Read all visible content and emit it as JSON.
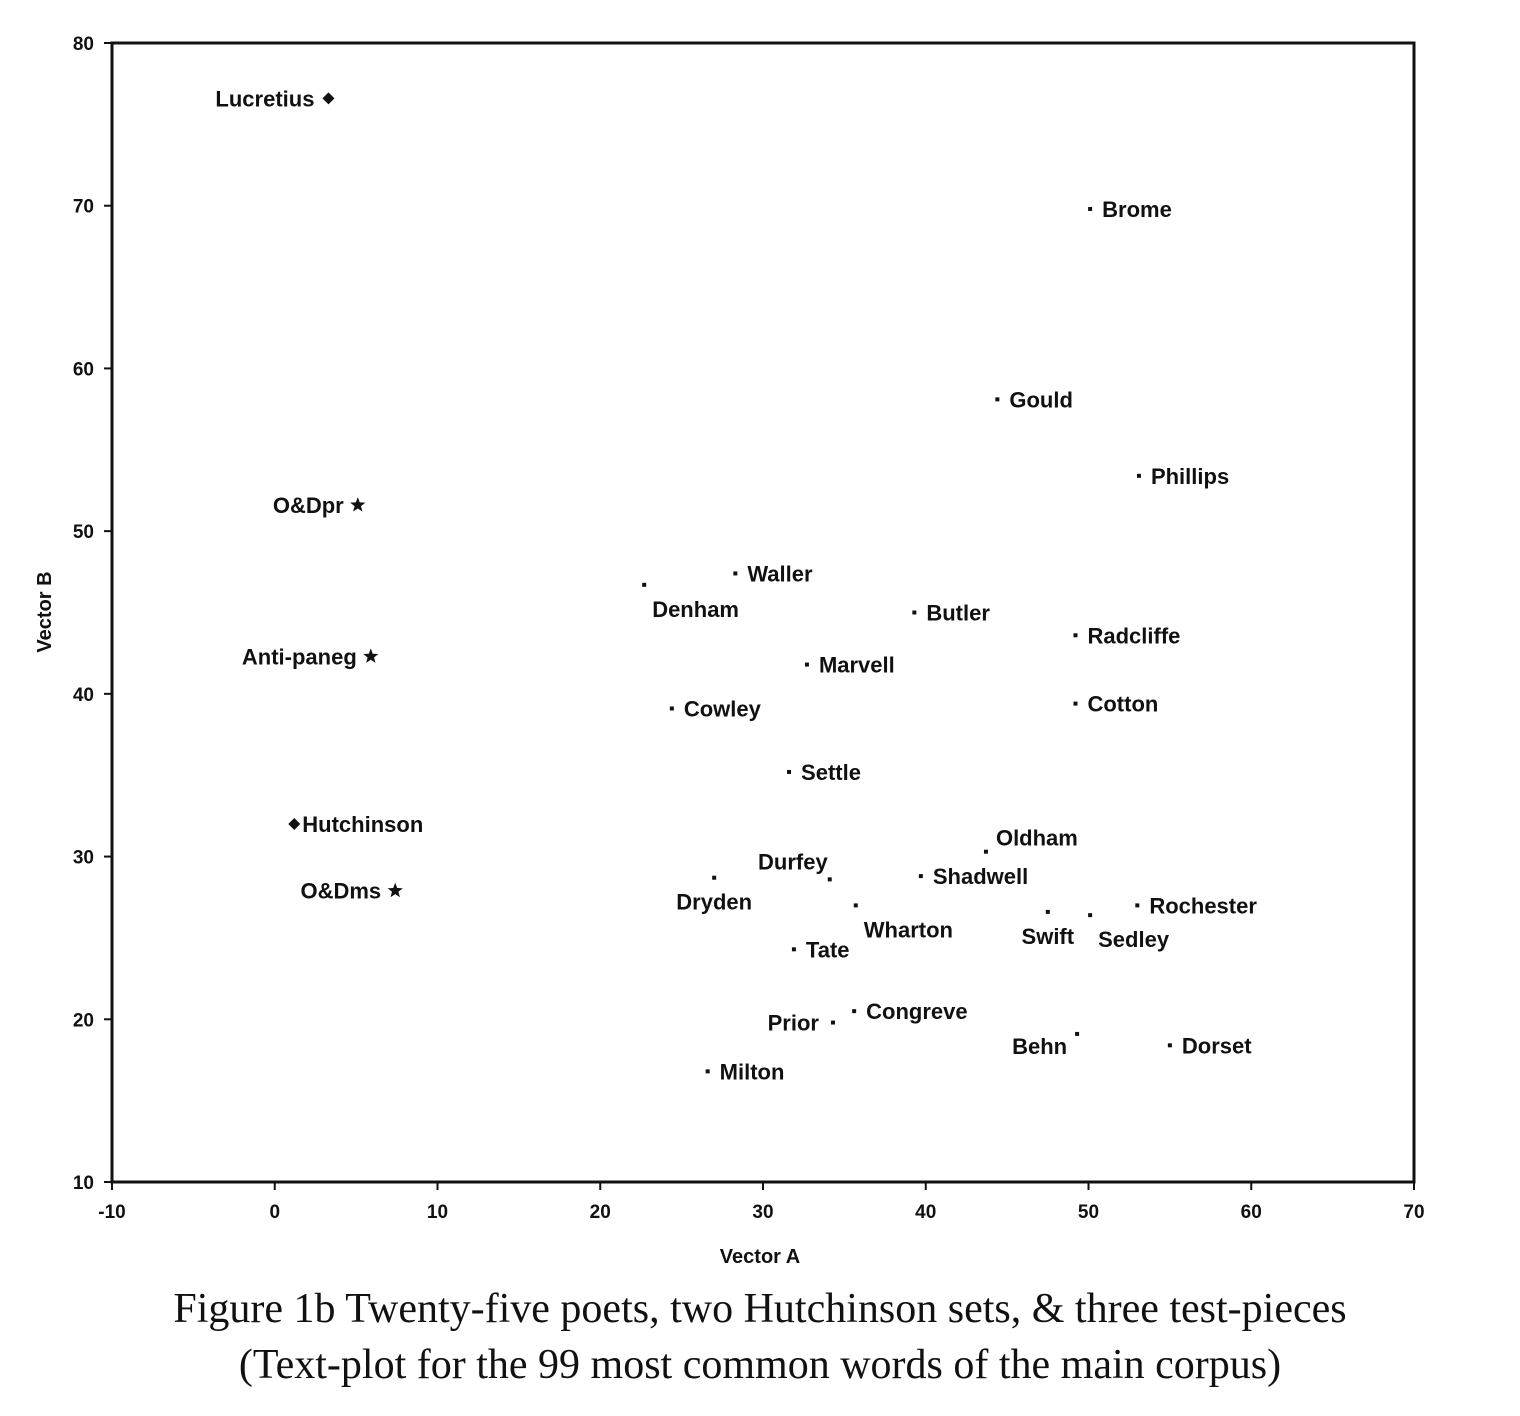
{
  "caption": {
    "line1": "Figure 1b Twenty-five poets, two Hutchinson sets, & three test-pieces",
    "line2": "(Text-plot for the 99 most common words of the main corpus)"
  },
  "chart_data": {
    "type": "scatter",
    "xlabel": "Vector A",
    "ylabel": "Vector B",
    "xlim": [
      -10,
      70
    ],
    "ylim": [
      10,
      80
    ],
    "xticks": [
      -10,
      0,
      10,
      20,
      30,
      40,
      50,
      60,
      70
    ],
    "yticks": [
      10,
      20,
      30,
      40,
      50,
      60,
      70,
      80
    ],
    "grid": false,
    "points": [
      {
        "label": "Lucretius",
        "x": 3.3,
        "y": 76.6,
        "marker": "diamond",
        "label_pos": "left",
        "label_weight": "bold"
      },
      {
        "label": "O&Dpr",
        "x": 5.1,
        "y": 51.6,
        "marker": "star",
        "label_pos": "left",
        "label_weight": "bold"
      },
      {
        "label": "Anti-paneg",
        "x": 5.9,
        "y": 42.3,
        "marker": "star",
        "label_pos": "left",
        "label_weight": "bold"
      },
      {
        "label": "Hutchinson",
        "x": 1.2,
        "y": 32.0,
        "marker": "diamond",
        "label_pos": "right",
        "label_weight": "bold"
      },
      {
        "label": "O&Dms",
        "x": 7.4,
        "y": 27.9,
        "marker": "star",
        "label_pos": "left",
        "label_weight": "bold"
      },
      {
        "label": "Brome",
        "x": 50.1,
        "y": 69.8,
        "marker": "dot",
        "label_pos": "right"
      },
      {
        "label": "Gould",
        "x": 44.4,
        "y": 58.1,
        "marker": "dot",
        "label_pos": "right"
      },
      {
        "label": "Phillips",
        "x": 53.1,
        "y": 53.4,
        "marker": "dot",
        "label_pos": "right"
      },
      {
        "label": "Waller",
        "x": 28.3,
        "y": 47.4,
        "marker": "dot",
        "label_pos": "right"
      },
      {
        "label": "Denham",
        "x": 22.7,
        "y": 46.7,
        "marker": "dot",
        "label_pos": "below-right"
      },
      {
        "label": "Butler",
        "x": 39.3,
        "y": 45.0,
        "marker": "dot",
        "label_pos": "right"
      },
      {
        "label": "Radcliffe",
        "x": 49.2,
        "y": 43.6,
        "marker": "dot",
        "label_pos": "right"
      },
      {
        "label": "Marvell",
        "x": 32.7,
        "y": 41.8,
        "marker": "dot",
        "label_pos": "right"
      },
      {
        "label": "Cowley",
        "x": 24.4,
        "y": 39.1,
        "marker": "dot",
        "label_pos": "right"
      },
      {
        "label": "Cotton",
        "x": 49.2,
        "y": 39.4,
        "marker": "dot",
        "label_pos": "right"
      },
      {
        "label": "Settle",
        "x": 31.6,
        "y": 35.2,
        "marker": "dot",
        "label_pos": "right"
      },
      {
        "label": "Oldham",
        "x": 43.7,
        "y": 30.3,
        "marker": "dot",
        "label_pos": "above-right"
      },
      {
        "label": "Durfey",
        "x": 34.1,
        "y": 28.6,
        "marker": "dot",
        "label_pos": "above-left"
      },
      {
        "label": "Dryden",
        "x": 27.0,
        "y": 28.7,
        "marker": "dot",
        "label_pos": "below"
      },
      {
        "label": "Shadwell",
        "x": 39.7,
        "y": 28.8,
        "marker": "dot",
        "label_pos": "right"
      },
      {
        "label": "Wharton",
        "x": 35.7,
        "y": 27.0,
        "marker": "dot",
        "label_pos": "below-right"
      },
      {
        "label": "Swift",
        "x": 47.5,
        "y": 26.6,
        "marker": "dot",
        "label_pos": "below"
      },
      {
        "label": "Sedley",
        "x": 50.1,
        "y": 26.4,
        "marker": "dot",
        "label_pos": "below-right"
      },
      {
        "label": "Rochester",
        "x": 53.0,
        "y": 27.0,
        "marker": "dot",
        "label_pos": "right"
      },
      {
        "label": "Tate",
        "x": 31.9,
        "y": 24.3,
        "marker": "dot",
        "label_pos": "right"
      },
      {
        "label": "Congreve",
        "x": 35.6,
        "y": 20.5,
        "marker": "dot",
        "label_pos": "right"
      },
      {
        "label": "Prior",
        "x": 34.3,
        "y": 19.8,
        "marker": "dot",
        "label_pos": "left"
      },
      {
        "label": "Behn",
        "x": 49.3,
        "y": 19.1,
        "marker": "dot",
        "label_pos": "below-left"
      },
      {
        "label": "Dorset",
        "x": 55.0,
        "y": 18.4,
        "marker": "dot",
        "label_pos": "right"
      },
      {
        "label": "Milton",
        "x": 26.6,
        "y": 16.8,
        "marker": "dot",
        "label_pos": "right"
      }
    ]
  }
}
